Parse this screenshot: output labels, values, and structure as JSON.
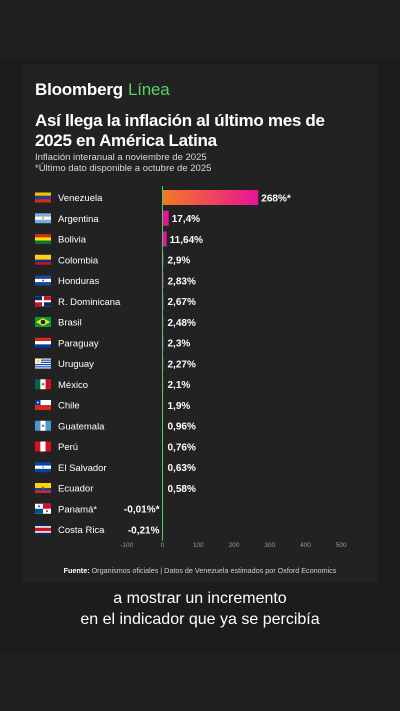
{
  "brand": {
    "name": "Bloomberg",
    "suffix": "Línea"
  },
  "header": {
    "title": "Así llega la inflación al último mes de 2025 en América Latina",
    "subtitle": "Inflación interanual a noviembre de 2025",
    "note": "*Último dato disponible a octubre de 2025"
  },
  "source": {
    "label": "Fuente:",
    "text": "Organismos oficiales | Datos de Venezuela estimados por Oxford Economics"
  },
  "caption": {
    "line1": "a mostrar un incremento",
    "line2": "en el indicador que ya se percibía"
  },
  "colors": {
    "bar_gradient_start": "#f57a1f",
    "bar_gradient_end": "#e8139a",
    "zero_line": "#3fcf6b",
    "brand_accent": "#58d35c"
  },
  "chart_data": {
    "type": "bar",
    "orientation": "horizontal",
    "categories": [
      "Venezuela",
      "Argentina",
      "Bolivia",
      "Colombia",
      "Honduras",
      "R. Dominicana",
      "Brasil",
      "Paraguay",
      "Uruguay",
      "México",
      "Chile",
      "Guatemala",
      "Perú",
      "El Salvador",
      "Ecuador",
      "Panamá*",
      "Costa Rica"
    ],
    "values": [
      268,
      17.4,
      11.64,
      2.9,
      2.83,
      2.67,
      2.48,
      2.3,
      2.27,
      2.1,
      1.9,
      0.96,
      0.76,
      0.63,
      0.58,
      -0.01,
      -0.21
    ],
    "value_labels": [
      "268%*",
      "17,4%",
      "11,64%",
      "2,9%",
      "2,83%",
      "2,67%",
      "2,48%",
      "2,3%",
      "2,27%",
      "2,1%",
      "1,9%",
      "0,96%",
      "0,76%",
      "0,63%",
      "0,58%",
      "-0,01%*",
      "-0,21%"
    ],
    "flags": [
      "venezuela-flag",
      "argentina-flag",
      "bolivia-flag",
      "colombia-flag",
      "honduras-flag",
      "dominican-republic-flag",
      "brazil-flag",
      "paraguay-flag",
      "uruguay-flag",
      "mexico-flag",
      "chile-flag",
      "guatemala-flag",
      "peru-flag",
      "el-salvador-flag",
      "ecuador-flag",
      "panama-flag",
      "costa-rica-flag"
    ],
    "xticks": [
      -100,
      0,
      100,
      200,
      300,
      400,
      500
    ],
    "xtick_labels": [
      "-100",
      "0",
      "100",
      "200",
      "300",
      "400",
      "500"
    ],
    "xlim": [
      -100,
      500
    ],
    "grid": false,
    "legend": "none"
  }
}
